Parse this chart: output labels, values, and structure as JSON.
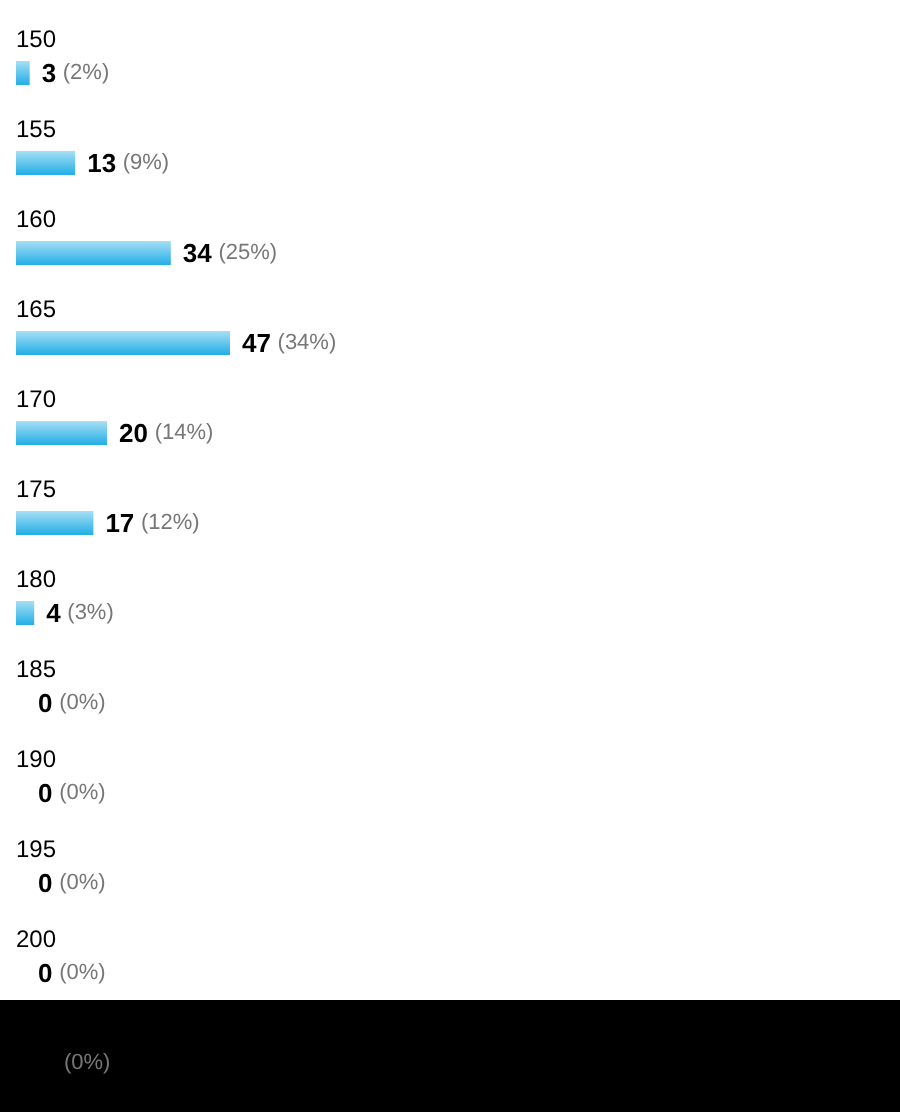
{
  "chart_data": {
    "type": "bar",
    "orientation": "horizontal",
    "categories": [
      "150",
      "155",
      "160",
      "165",
      "170",
      "175",
      "180",
      "185",
      "190",
      "195",
      "200",
      null
    ],
    "values": [
      3,
      13,
      34,
      47,
      20,
      17,
      4,
      0,
      0,
      0,
      0,
      0
    ],
    "value_labels": [
      "3 (2%)",
      "13 (9%)",
      "34 (25%)",
      "47 (34%)",
      "20 (14%)",
      "17 (12%)",
      "4 (3%)",
      "0 (0%)",
      "0 (0%)",
      "0 (0%)",
      "0 (0%)",
      "(0%)"
    ],
    "color": "#22aee6"
  }
}
